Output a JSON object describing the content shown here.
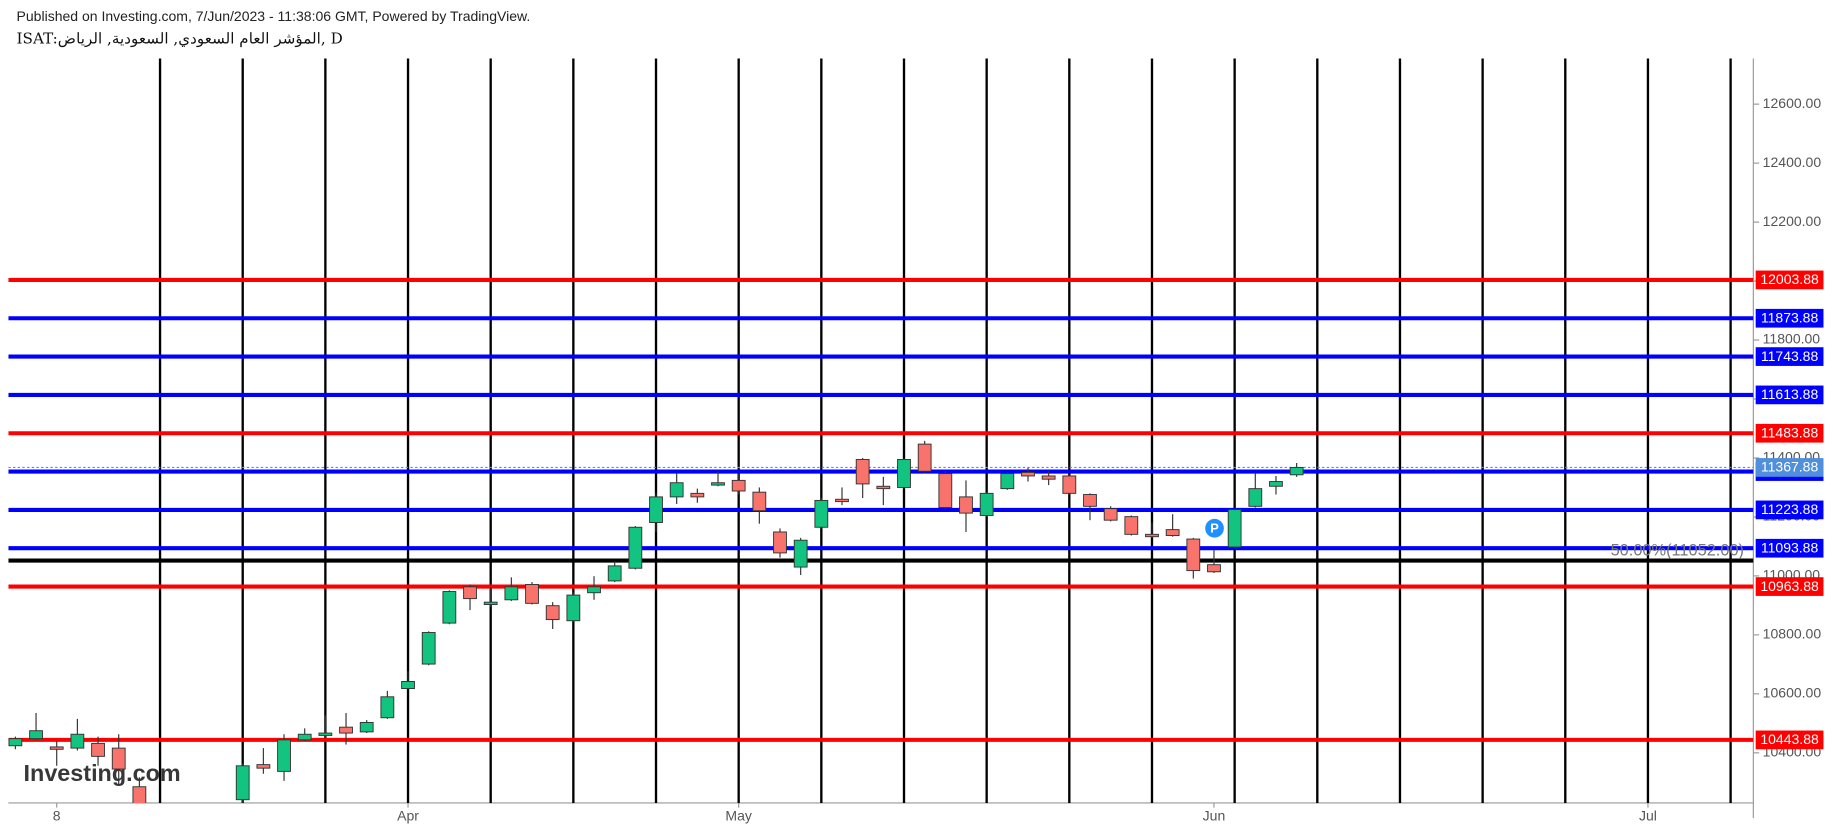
{
  "chart_data": {
    "type": "candlestick",
    "title": "Published on Investing.com, 7/Jun/2023 - 11:38:06 GMT, Powered by TradingView.",
    "subtitle": "ISAT:المؤشر العام السعودي, السعودية, الرياض, D",
    "watermark": "Investing.com",
    "marker": "P",
    "up_color": "#12c47f",
    "down_color": "#f7736c",
    "x": [
      0,
      1,
      2,
      3,
      4,
      5,
      6,
      11,
      12,
      13,
      14,
      15,
      16,
      17,
      18,
      19,
      20,
      21,
      22,
      23,
      24,
      25,
      26,
      27,
      28,
      29,
      30,
      31,
      32,
      33,
      34,
      35,
      36,
      37,
      38,
      39,
      40,
      41,
      42,
      43,
      44,
      45,
      46,
      47,
      48,
      49,
      50,
      51,
      52,
      53,
      54,
      55,
      56,
      57,
      58,
      59,
      60,
      61,
      62
    ],
    "open": [
      10424,
      10448,
      10420,
      10416,
      10432,
      10416,
      10285,
      10241,
      10360,
      10337,
      10444,
      10459,
      10487,
      10471,
      10519,
      10618,
      10701,
      10840,
      10963,
      10903,
      10919,
      10971,
      10899,
      10848,
      10943,
      10983,
      11026,
      11181,
      11268,
      11280,
      11308,
      11324,
      11284,
      11149,
      11030,
      11165,
      11260,
      11395,
      11304,
      11300,
      11447,
      11347,
      11268,
      11205,
      11296,
      11351,
      11339,
      11339,
      11276,
      11228,
      11201,
      11141,
      11157,
      11125,
      11038,
      11098,
      11236,
      11304,
      11343
    ],
    "high": [
      10455,
      10535,
      10440,
      10515,
      10455,
      10463,
      10317,
      10364,
      10416,
      10463,
      10483,
      10527,
      10535,
      10511,
      10610,
      10677,
      10812,
      10951,
      10971,
      10963,
      10995,
      10979,
      10911,
      10943,
      10999,
      11050,
      11169,
      11280,
      11347,
      11296,
      11355,
      11347,
      11300,
      11161,
      11129,
      11264,
      11300,
      11400,
      11336,
      11399,
      11458,
      11355,
      11324,
      11284,
      11351,
      11367,
      11355,
      11343,
      11280,
      11236,
      11205,
      11181,
      11209,
      11129,
      11090,
      11228,
      11347,
      11339,
      11383
    ],
    "low": [
      10412,
      10444,
      10356,
      10408,
      10356,
      10289,
      10178,
      10225,
      10329,
      10305,
      10440,
      10448,
      10428,
      10467,
      10515,
      10614,
      10697,
      10836,
      10884,
      10895,
      10915,
      10903,
      10820,
      10844,
      10919,
      10979,
      11022,
      11149,
      11244,
      11248,
      11304,
      11276,
      11177,
      11062,
      11003,
      11161,
      11240,
      11264,
      11240,
      11296,
      11351,
      11225,
      11149,
      11201,
      11292,
      11320,
      11308,
      11276,
      11189,
      11185,
      11137,
      11129,
      11133,
      10991,
      11010,
      11094,
      11232,
      11276,
      11336
    ],
    "close": [
      10448,
      10475,
      10412,
      10463,
      10388,
      10345,
      10218,
      10356,
      10348,
      10444,
      10463,
      10467,
      10467,
      10503,
      10590,
      10642,
      10808,
      10947,
      10923,
      10911,
      10963,
      10907,
      10852,
      10935,
      10963,
      11034,
      11165,
      11268,
      11316,
      11268,
      11316,
      11288,
      11221,
      11078,
      11121,
      11256,
      11252,
      11312,
      11296,
      11395,
      11355,
      11232,
      11213,
      11280,
      11347,
      11339,
      11328,
      11280,
      11236,
      11189,
      11141,
      11133,
      11137,
      11018,
      11014,
      11225,
      11296,
      11320,
      11367.88
    ],
    "xlim": [
      -0.34,
      84.1
    ],
    "xticks": [
      {
        "value": 2,
        "label": "8"
      },
      {
        "value": 19,
        "label": "Apr"
      },
      {
        "value": 35,
        "label": "May"
      },
      {
        "value": 58,
        "label": "Jun"
      },
      {
        "value": 79,
        "label": "Jul"
      }
    ],
    "ylim": [
      10230,
      12755
    ],
    "yticks": [
      {
        "value": 10400,
        "label": "10400.00"
      },
      {
        "value": 10600,
        "label": "10600.00"
      },
      {
        "value": 10800,
        "label": "10800.00"
      },
      {
        "value": 11000,
        "label": "11000.00"
      },
      {
        "value": 11200,
        "label": "11200.00"
      },
      {
        "value": 11400,
        "label": "11400.00"
      },
      {
        "value": 11600,
        "label": "11600.00"
      },
      {
        "value": 11800,
        "label": "11800.00"
      },
      {
        "value": 12000,
        "label": "12000.00"
      },
      {
        "value": 12200,
        "label": "12200.00"
      },
      {
        "value": 12400,
        "label": "12400.00"
      },
      {
        "value": 12600,
        "label": "12600.00"
      }
    ],
    "vlines": [
      7,
      11,
      15,
      19,
      23,
      27,
      31,
      35,
      39,
      43,
      47,
      51,
      55,
      59,
      63,
      67,
      71,
      75,
      79,
      83
    ],
    "levels": [
      {
        "value": 12003.88,
        "color": "#ff0000"
      },
      {
        "value": 11873.88,
        "color": "#0000ff"
      },
      {
        "value": 11743.88,
        "color": "#0000ff"
      },
      {
        "value": 11613.88,
        "color": "#0000ff"
      },
      {
        "value": 11483.88,
        "color": "#ff0000"
      },
      {
        "value": 11353.88,
        "color": "#0000ff"
      },
      {
        "value": 11223.88,
        "color": "#0000ff"
      },
      {
        "value": 11093.88,
        "color": "#0000ff"
      },
      {
        "value": 10963.88,
        "color": "#ff0000"
      },
      {
        "value": 10443.88,
        "color": "#ff0000"
      }
    ],
    "fib": {
      "value": 11052,
      "label": "50.00%(11052.00)"
    },
    "last_price": {
      "value": 11367.88,
      "color": "#4f8fdc"
    }
  }
}
